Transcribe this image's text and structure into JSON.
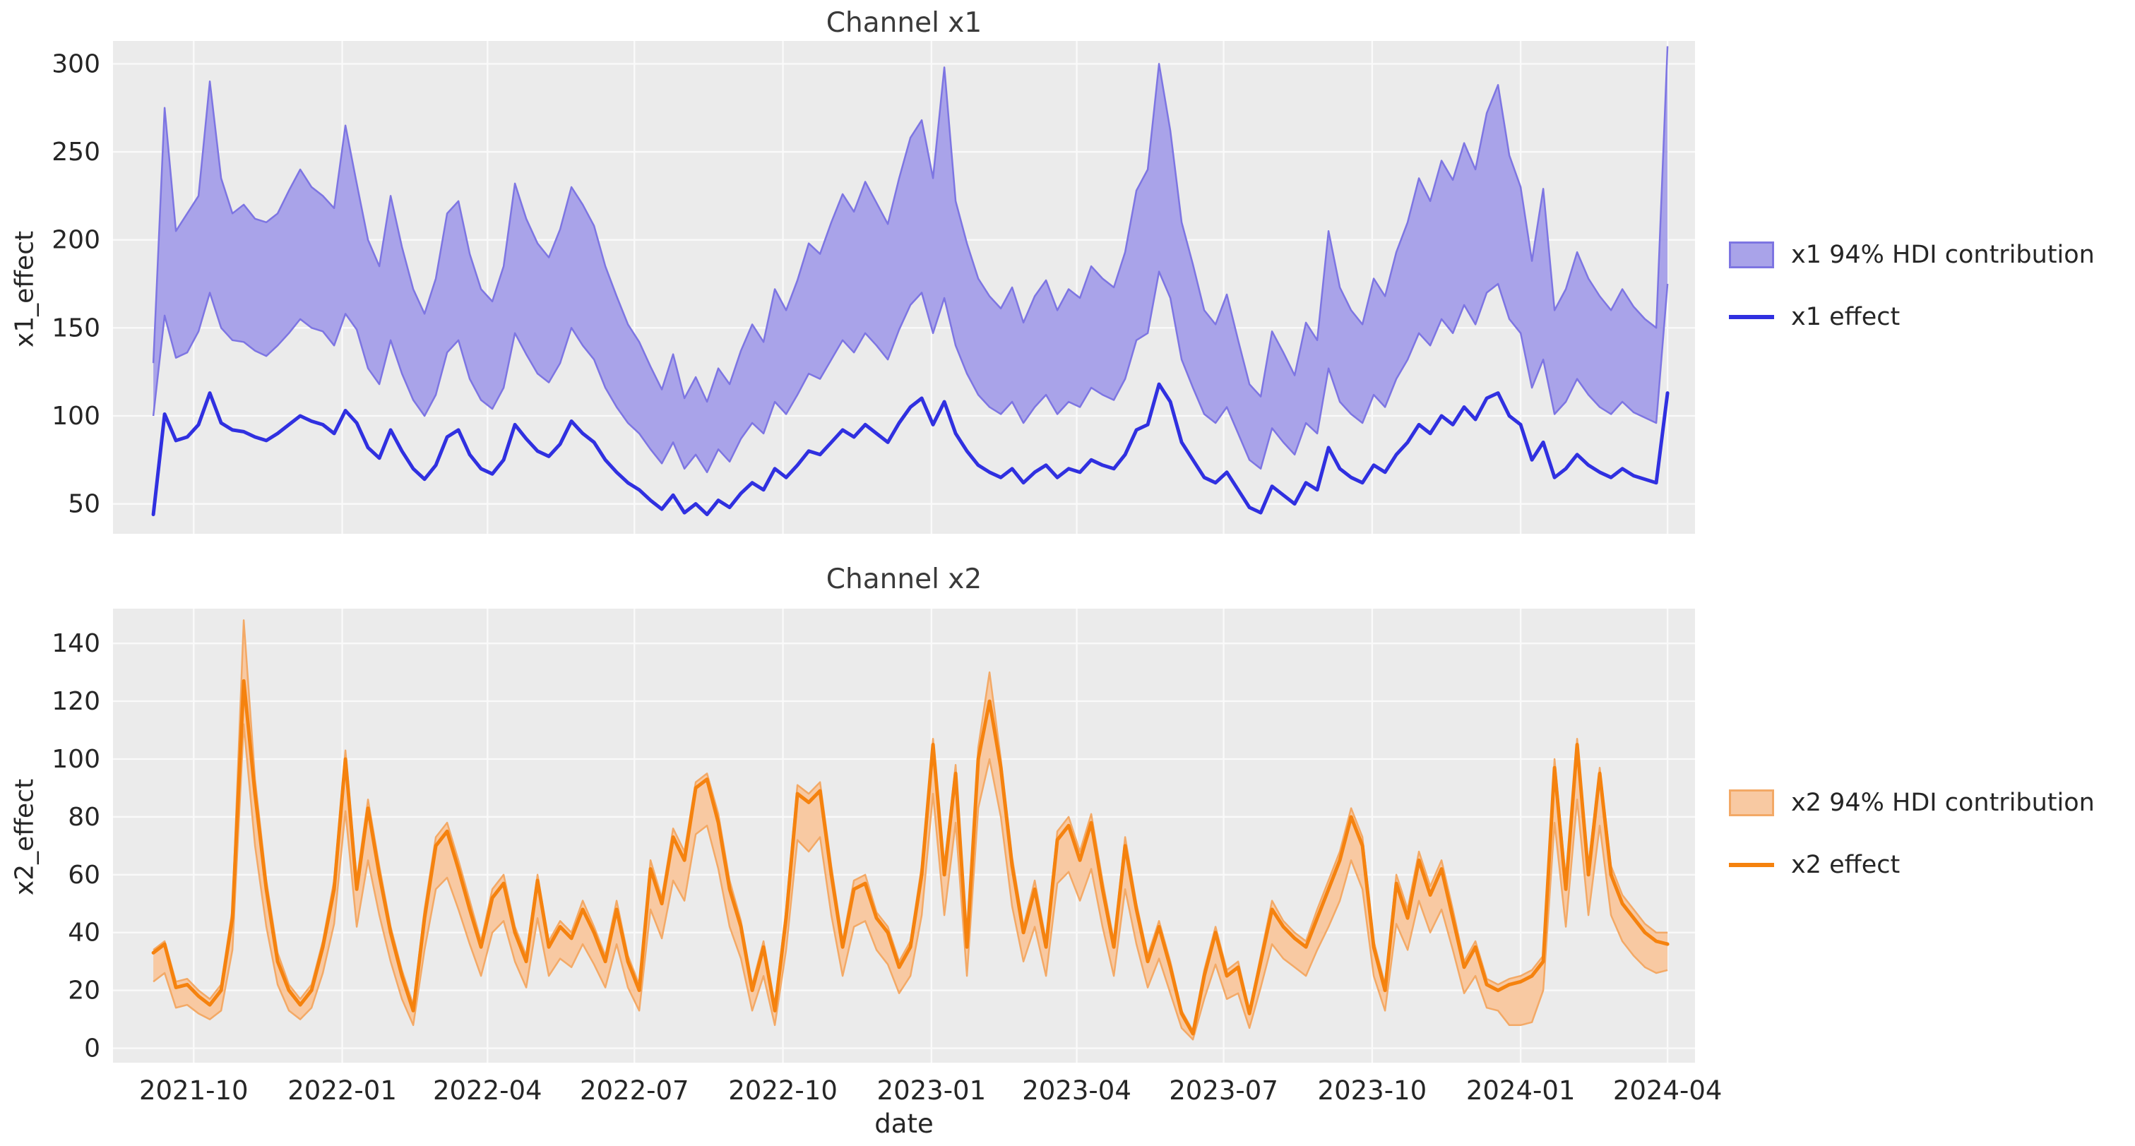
{
  "style": {
    "figure_bg": "#ffffff",
    "plot_bg": "#ebebeb",
    "grid_color": "#fafafa",
    "text_color": "#262626",
    "x1_line_color": "#3030e0",
    "x1_band_fill": "#a9a3e9",
    "x1_band_edge": "#7d75e2",
    "x2_line_color": "#f5820e",
    "x2_band_fill": "#f8c9a2",
    "x2_band_edge": "#f3a966"
  },
  "dates": [
    "2021-09-06",
    "2021-09-13",
    "2021-09-20",
    "2021-09-27",
    "2021-10-04",
    "2021-10-11",
    "2021-10-18",
    "2021-10-25",
    "2021-11-01",
    "2021-11-08",
    "2021-11-15",
    "2021-11-22",
    "2021-11-29",
    "2021-12-06",
    "2021-12-13",
    "2021-12-20",
    "2021-12-27",
    "2022-01-03",
    "2022-01-10",
    "2022-01-17",
    "2022-01-24",
    "2022-01-31",
    "2022-02-07",
    "2022-02-14",
    "2022-02-21",
    "2022-02-28",
    "2022-03-07",
    "2022-03-14",
    "2022-03-21",
    "2022-03-28",
    "2022-04-04",
    "2022-04-11",
    "2022-04-18",
    "2022-04-25",
    "2022-05-02",
    "2022-05-09",
    "2022-05-16",
    "2022-05-23",
    "2022-05-30",
    "2022-06-06",
    "2022-06-13",
    "2022-06-20",
    "2022-06-27",
    "2022-07-04",
    "2022-07-11",
    "2022-07-18",
    "2022-07-25",
    "2022-08-01",
    "2022-08-08",
    "2022-08-15",
    "2022-08-22",
    "2022-08-29",
    "2022-09-05",
    "2022-09-12",
    "2022-09-19",
    "2022-09-26",
    "2022-10-03",
    "2022-10-10",
    "2022-10-17",
    "2022-10-24",
    "2022-10-31",
    "2022-11-07",
    "2022-11-14",
    "2022-11-21",
    "2022-11-28",
    "2022-12-05",
    "2022-12-12",
    "2022-12-19",
    "2022-12-26",
    "2023-01-02",
    "2023-01-09",
    "2023-01-16",
    "2023-01-23",
    "2023-01-30",
    "2023-02-06",
    "2023-02-13",
    "2023-02-20",
    "2023-02-27",
    "2023-03-06",
    "2023-03-13",
    "2023-03-20",
    "2023-03-27",
    "2023-04-03",
    "2023-04-10",
    "2023-04-17",
    "2023-04-24",
    "2023-05-01",
    "2023-05-08",
    "2023-05-15",
    "2023-05-22",
    "2023-05-29",
    "2023-06-05",
    "2023-06-12",
    "2023-06-19",
    "2023-06-26",
    "2023-07-03",
    "2023-07-10",
    "2023-07-17",
    "2023-07-24",
    "2023-07-31",
    "2023-08-07",
    "2023-08-14",
    "2023-08-21",
    "2023-08-28",
    "2023-09-04",
    "2023-09-11",
    "2023-09-18",
    "2023-09-25",
    "2023-10-02",
    "2023-10-09",
    "2023-10-16",
    "2023-10-23",
    "2023-10-30",
    "2023-11-06",
    "2023-11-13",
    "2023-11-20",
    "2023-11-27",
    "2023-12-04",
    "2023-12-11",
    "2023-12-18",
    "2023-12-25",
    "2024-01-01",
    "2024-01-08",
    "2024-01-15",
    "2024-01-22",
    "2024-01-29",
    "2024-02-05",
    "2024-02-12",
    "2024-02-19",
    "2024-02-26",
    "2024-03-04",
    "2024-03-11",
    "2024-03-18",
    "2024-03-25",
    "2024-04-01"
  ],
  "x_tick_dates": [
    "2021-10-01",
    "2022-01-01",
    "2022-04-01",
    "2022-07-01",
    "2022-10-01",
    "2023-01-01",
    "2023-04-01",
    "2023-07-01",
    "2023-10-01",
    "2024-01-01",
    "2024-04-01"
  ],
  "x_tick_labels": [
    "2021-10",
    "2022-01",
    "2022-04",
    "2022-07",
    "2022-10",
    "2023-01",
    "2023-04",
    "2023-07",
    "2023-10",
    "2024-01",
    "2024-04"
  ],
  "chart_data": [
    {
      "type": "line",
      "title": "Channel x1",
      "xlabel": "date",
      "ylabel": "x1_effect",
      "grid": true,
      "legend_position": "right",
      "y_ticks": [
        50,
        100,
        150,
        200,
        250,
        300
      ],
      "ylim": [
        33,
        313
      ],
      "legend": {
        "band_label": "x1 94% HDI contribution",
        "line_label": "x1 effect"
      },
      "series": [
        {
          "name": "x1 effect",
          "values": [
            44,
            101,
            86,
            88,
            95,
            113,
            96,
            92,
            91,
            88,
            86,
            90,
            95,
            100,
            97,
            95,
            90,
            103,
            96,
            82,
            76,
            92,
            80,
            70,
            64,
            72,
            88,
            92,
            78,
            70,
            67,
            75,
            95,
            87,
            80,
            77,
            84,
            97,
            90,
            85,
            75,
            68,
            62,
            58,
            52,
            47,
            55,
            45,
            50,
            44,
            52,
            48,
            56,
            62,
            58,
            70,
            65,
            72,
            80,
            78,
            85,
            92,
            88,
            95,
            90,
            85,
            96,
            105,
            110,
            95,
            108,
            90,
            80,
            72,
            68,
            65,
            70,
            62,
            68,
            72,
            65,
            70,
            68,
            75,
            72,
            70,
            78,
            92,
            95,
            118,
            108,
            85,
            75,
            65,
            62,
            68,
            58,
            48,
            45,
            60,
            55,
            50,
            62,
            58,
            82,
            70,
            65,
            62,
            72,
            68,
            78,
            85,
            95,
            90,
            100,
            95,
            105,
            98,
            110,
            113,
            100,
            95,
            75,
            85,
            65,
            70,
            78,
            72,
            68,
            65,
            70,
            66,
            64,
            62,
            113
          ]
        },
        {
          "name": "x1 94% HDI contribution",
          "lower": [
            100,
            157,
            133,
            136,
            148,
            170,
            150,
            143,
            142,
            137,
            134,
            140,
            147,
            155,
            150,
            148,
            140,
            158,
            149,
            127,
            118,
            143,
            124,
            109,
            100,
            112,
            136,
            143,
            121,
            109,
            104,
            116,
            147,
            135,
            124,
            119,
            130,
            150,
            140,
            132,
            116,
            105,
            96,
            90,
            81,
            73,
            85,
            70,
            78,
            68,
            81,
            74,
            87,
            96,
            90,
            108,
            101,
            112,
            124,
            121,
            132,
            143,
            136,
            147,
            140,
            132,
            149,
            163,
            170,
            147,
            167,
            140,
            124,
            112,
            105,
            101,
            108,
            96,
            105,
            112,
            101,
            108,
            105,
            116,
            112,
            109,
            121,
            143,
            147,
            182,
            167,
            132,
            116,
            101,
            96,
            105,
            90,
            75,
            70,
            93,
            85,
            78,
            96,
            90,
            127,
            108,
            101,
            96,
            112,
            105,
            121,
            132,
            147,
            140,
            155,
            147,
            163,
            152,
            170,
            175,
            155,
            147,
            116,
            132,
            101,
            108,
            121,
            112,
            105,
            101,
            108,
            102,
            99,
            96,
            175
          ],
          "upper": [
            130,
            275,
            205,
            215,
            225,
            290,
            235,
            215,
            220,
            212,
            210,
            215,
            228,
            240,
            230,
            225,
            218,
            265,
            232,
            200,
            185,
            225,
            196,
            172,
            158,
            178,
            215,
            222,
            192,
            172,
            165,
            185,
            232,
            212,
            198,
            190,
            206,
            230,
            220,
            208,
            185,
            168,
            152,
            142,
            128,
            115,
            135,
            110,
            122,
            108,
            127,
            118,
            137,
            152,
            142,
            172,
            160,
            177,
            198,
            192,
            210,
            226,
            216,
            233,
            221,
            209,
            235,
            258,
            268,
            235,
            298,
            222,
            198,
            178,
            168,
            161,
            173,
            153,
            168,
            177,
            160,
            172,
            167,
            185,
            178,
            173,
            193,
            228,
            240,
            300,
            262,
            210,
            186,
            160,
            152,
            169,
            143,
            118,
            111,
            148,
            136,
            123,
            153,
            143,
            205,
            173,
            160,
            152,
            178,
            168,
            193,
            210,
            235,
            222,
            245,
            234,
            255,
            240,
            272,
            288,
            248,
            230,
            188,
            229,
            160,
            172,
            193,
            178,
            168,
            160,
            172,
            162,
            155,
            150,
            310
          ]
        }
      ]
    },
    {
      "type": "line",
      "title": "Channel x2",
      "xlabel": "date",
      "ylabel": "x2_effect",
      "grid": true,
      "legend_position": "right",
      "y_ticks": [
        0,
        20,
        40,
        60,
        80,
        100,
        120,
        140
      ],
      "ylim": [
        -5,
        152
      ],
      "legend": {
        "band_label": "x2 94% HDI contribution",
        "line_label": "x2 effect"
      },
      "series": [
        {
          "name": "x2 effect",
          "values": [
            33,
            36,
            21,
            22,
            18,
            15,
            20,
            45,
            127,
            88,
            55,
            30,
            20,
            15,
            20,
            35,
            55,
            100,
            55,
            83,
            60,
            40,
            25,
            13,
            45,
            70,
            75,
            62,
            48,
            35,
            52,
            57,
            40,
            30,
            58,
            35,
            42,
            38,
            48,
            40,
            30,
            48,
            30,
            20,
            62,
            50,
            73,
            65,
            90,
            93,
            78,
            55,
            42,
            20,
            35,
            13,
            45,
            88,
            85,
            89,
            60,
            35,
            55,
            57,
            45,
            40,
            28,
            35,
            60,
            105,
            60,
            95,
            35,
            100,
            120,
            97,
            63,
            40,
            55,
            35,
            72,
            77,
            65,
            78,
            55,
            35,
            70,
            48,
            30,
            42,
            28,
            12,
            5,
            25,
            40,
            25,
            28,
            12,
            30,
            48,
            42,
            38,
            35,
            45,
            55,
            65,
            80,
            70,
            35,
            20,
            57,
            45,
            65,
            53,
            62,
            45,
            28,
            35,
            22,
            20,
            22,
            23,
            25,
            30,
            97,
            55,
            105,
            60,
            95,
            60,
            50,
            45,
            40,
            37,
            36
          ]
        },
        {
          "name": "x2 94% HDI contribution",
          "lower": [
            23,
            26,
            14,
            15,
            12,
            10,
            13,
            34,
            112,
            70,
            42,
            22,
            13,
            10,
            14,
            26,
            43,
            82,
            42,
            65,
            46,
            30,
            17,
            8,
            34,
            55,
            59,
            48,
            36,
            25,
            40,
            44,
            30,
            21,
            45,
            25,
            31,
            28,
            36,
            29,
            21,
            36,
            21,
            13,
            48,
            38,
            58,
            51,
            74,
            77,
            62,
            42,
            31,
            13,
            25,
            8,
            34,
            72,
            68,
            73,
            46,
            25,
            42,
            44,
            34,
            29,
            19,
            25,
            46,
            88,
            46,
            78,
            25,
            83,
            100,
            80,
            49,
            30,
            42,
            25,
            57,
            61,
            51,
            62,
            42,
            25,
            55,
            36,
            21,
            31,
            19,
            7,
            3,
            17,
            29,
            17,
            19,
            7,
            21,
            36,
            31,
            28,
            25,
            34,
            42,
            51,
            65,
            55,
            25,
            13,
            43,
            34,
            51,
            40,
            48,
            34,
            19,
            25,
            14,
            13,
            8,
            8,
            9,
            20,
            78,
            42,
            86,
            46,
            77,
            46,
            37,
            32,
            28,
            26,
            27
          ],
          "upper": [
            34,
            37,
            23,
            24,
            20,
            17,
            22,
            48,
            148,
            93,
            58,
            33,
            22,
            17,
            22,
            37,
            58,
            103,
            58,
            86,
            63,
            42,
            27,
            15,
            48,
            73,
            78,
            65,
            51,
            37,
            55,
            60,
            42,
            32,
            60,
            37,
            44,
            40,
            51,
            42,
            32,
            51,
            32,
            22,
            65,
            52,
            76,
            68,
            92,
            95,
            81,
            58,
            44,
            22,
            37,
            15,
            48,
            91,
            88,
            92,
            63,
            37,
            58,
            60,
            47,
            42,
            30,
            37,
            63,
            107,
            63,
            98,
            37,
            104,
            130,
            100,
            66,
            42,
            58,
            37,
            75,
            80,
            68,
            81,
            58,
            37,
            73,
            50,
            32,
            44,
            30,
            13,
            6,
            27,
            42,
            27,
            30,
            13,
            32,
            51,
            44,
            40,
            37,
            48,
            58,
            68,
            83,
            73,
            37,
            22,
            60,
            48,
            68,
            56,
            65,
            48,
            30,
            37,
            24,
            22,
            24,
            25,
            27,
            32,
            100,
            58,
            107,
            63,
            97,
            63,
            53,
            48,
            43,
            40,
            40
          ]
        }
      ]
    }
  ]
}
